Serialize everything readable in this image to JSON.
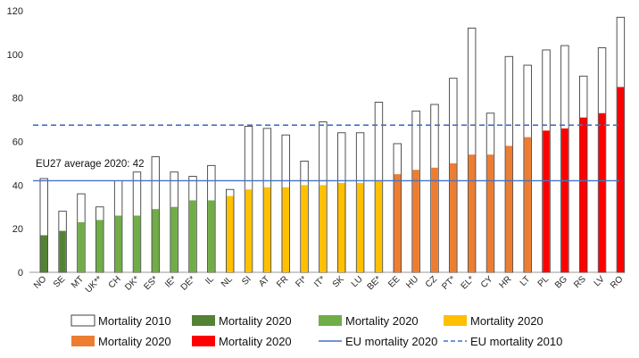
{
  "chart_data": {
    "type": "bar",
    "title": "",
    "xlabel": "",
    "ylabel": "",
    "ylim": [
      0,
      120
    ],
    "yticks": [
      0,
      20,
      40,
      60,
      80,
      100,
      120
    ],
    "grid": false,
    "categories": [
      "NO",
      "SE",
      "MT",
      "UK**",
      "CH",
      "DK*",
      "ES*",
      "IE*",
      "DE*",
      "IL",
      "NL",
      "SI",
      "AT",
      "FR",
      "FI*",
      "IT*",
      "SK",
      "LU",
      "BE*",
      "EE",
      "HU",
      "CZ",
      "PT*",
      "EL*",
      "CY",
      "HR",
      "LT",
      "PL",
      "BG",
      "RS",
      "LV",
      "RO"
    ],
    "groups": [
      "g1",
      "g1",
      "g2",
      "g2",
      "g2",
      "g2",
      "g2",
      "g2",
      "g2",
      "g2",
      "g3",
      "g3",
      "g3",
      "g3",
      "g3",
      "g3",
      "g3",
      "g3",
      "g3",
      "g4",
      "g4",
      "g4",
      "g4",
      "g4",
      "g4",
      "g4",
      "g4",
      "g5",
      "g5",
      "g5",
      "g5",
      "g5"
    ],
    "group_colors": {
      "g1": "#548235",
      "g2": "#70ad47",
      "g3": "#ffc000",
      "g4": "#ed7d31",
      "g5": "#ff0000"
    },
    "series": [
      {
        "name": "Mortality 2010",
        "style": "outline",
        "values": [
          43,
          28,
          36,
          30,
          42,
          46,
          53,
          46,
          44,
          49,
          38,
          67,
          66,
          63,
          51,
          69,
          64,
          64,
          78,
          59,
          74,
          77,
          89,
          112,
          73,
          99,
          95,
          102,
          104,
          90,
          103,
          117
        ]
      },
      {
        "name": "Mortality 2020",
        "style": "filled-by-group",
        "values": [
          17,
          19,
          23,
          24,
          26,
          26,
          29,
          30,
          33,
          33,
          35,
          38,
          39,
          39,
          40,
          40,
          41,
          41,
          42,
          45,
          47,
          48,
          50,
          54,
          54,
          58,
          62,
          65,
          66,
          71,
          73,
          85
        ]
      }
    ],
    "reference_lines": [
      {
        "name": "EU mortality 2020",
        "value": 42,
        "style": "solid",
        "color": "#4472c4"
      },
      {
        "name": "EU mortality 2010",
        "value": 67.5,
        "style": "dashed",
        "color": "#4472c4"
      }
    ],
    "annotations": [
      {
        "text": "EU27 average 2020: 42"
      }
    ],
    "legend": {
      "placement": "bottom",
      "entries": [
        {
          "label": "Mortality 2010",
          "kind": "outline"
        },
        {
          "label": "Mortality 2020",
          "kind": "fill",
          "color": "#548235"
        },
        {
          "label": "Mortality 2020",
          "kind": "fill",
          "color": "#70ad47"
        },
        {
          "label": "Mortality 2020",
          "kind": "fill",
          "color": "#ffc000"
        },
        {
          "label": "Mortality 2020",
          "kind": "fill",
          "color": "#ed7d31"
        },
        {
          "label": "Mortality 2020",
          "kind": "fill",
          "color": "#ff0000"
        },
        {
          "label": "EU mortality 2020",
          "kind": "line-solid",
          "color": "#4472c4"
        },
        {
          "label": "EU mortality 2010",
          "kind": "line-dashed",
          "color": "#4472c4"
        }
      ]
    }
  }
}
